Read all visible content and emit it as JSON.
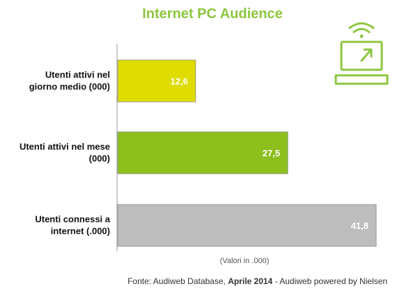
{
  "chart_data": {
    "type": "bar",
    "orientation": "horizontal",
    "title": "Internet PC Audience",
    "categories": [
      "Utenti attivi nel giorno medio (000)",
      "Utenti attivi nel mese (000)",
      "Utenti connessi a internet (.000)"
    ],
    "category_lines": [
      [
        "Utenti attivi nel",
        "giorno medio (000)"
      ],
      [
        "Utenti attivi nel mese",
        "(000)"
      ],
      [
        "Utenti connessi a",
        "internet (.000)"
      ]
    ],
    "values": [
      12.6,
      27.5,
      41.8
    ],
    "value_labels": [
      "12,6",
      "27,5",
      "41,8"
    ],
    "colors": [
      "#dedc00",
      "#8dbf1d",
      "#bdbdbd"
    ],
    "xlim": [
      0,
      41.8
    ],
    "grid": false,
    "legend": "none",
    "note": "(Valori in .000)"
  },
  "source": {
    "prefix": "Fonte: Audiweb Database, ",
    "bold": "Aprile 2014",
    "suffix": " - Audiweb powered by Nielsen"
  },
  "colors": {
    "title": "#8dc63f",
    "axis": "#999999",
    "icon": "#8dc63f"
  },
  "icon": "laptop-wifi-icon"
}
